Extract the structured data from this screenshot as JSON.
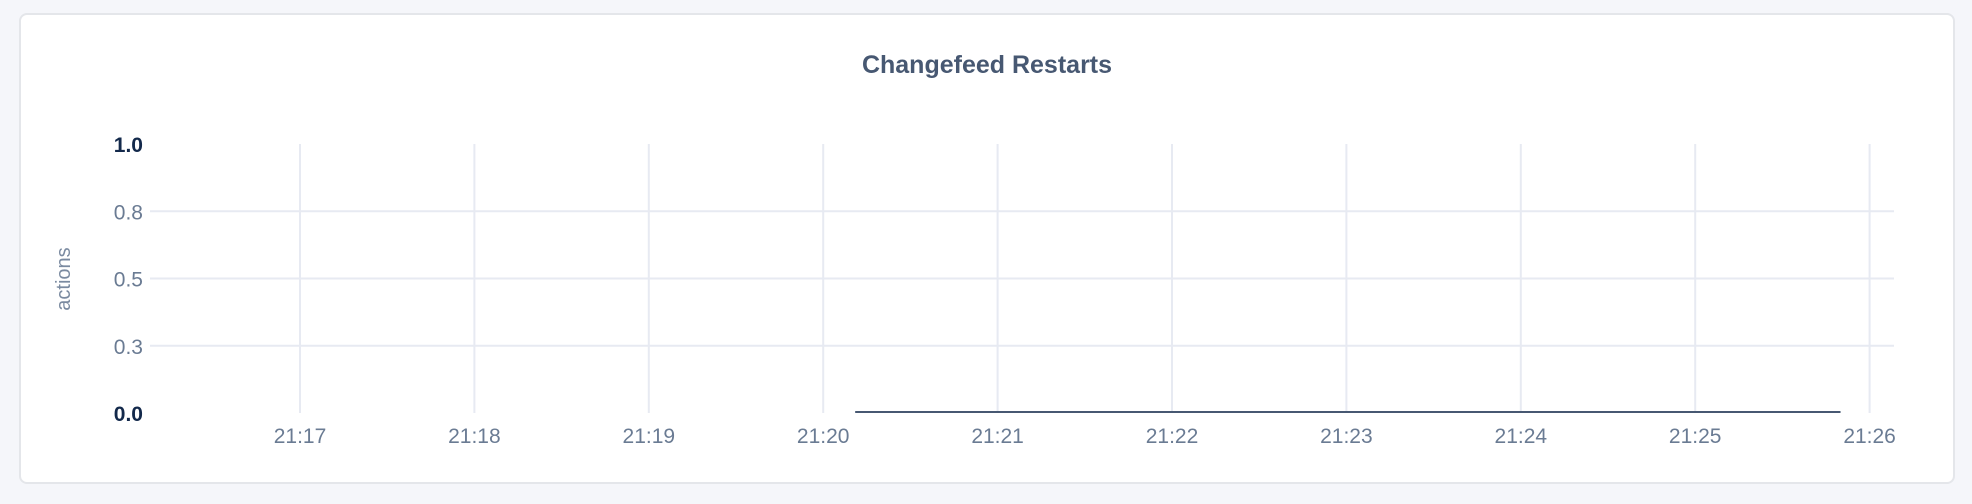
{
  "chart_data": {
    "type": "line",
    "title": "Changefeed Restarts",
    "ylabel": "actions",
    "xlabel": "",
    "ylim": [
      0,
      1.0
    ],
    "yticks": [
      {
        "value": 1.0,
        "label": "1.0",
        "bold": true
      },
      {
        "value": 0.75,
        "label": "0.8",
        "bold": false
      },
      {
        "value": 0.5,
        "label": "0.5",
        "bold": false
      },
      {
        "value": 0.25,
        "label": "0.3",
        "bold": false
      },
      {
        "value": 0.0,
        "label": "0.0",
        "bold": true
      }
    ],
    "xlim": [
      "21:16:00",
      "21:26:08"
    ],
    "xticks": [
      "21:17",
      "21:18",
      "21:19",
      "21:20",
      "21:21",
      "21:22",
      "21:23",
      "21:24",
      "21:25",
      "21:26"
    ],
    "grid": true,
    "series": [
      {
        "color": "#475872",
        "points": [
          {
            "x": "21:20:11",
            "y": 0
          },
          {
            "x": "21:25:50",
            "y": 0
          }
        ]
      }
    ],
    "colors": {
      "grid": "#e7eaf2",
      "line": "#475872",
      "background": "#f5f6fa"
    }
  }
}
